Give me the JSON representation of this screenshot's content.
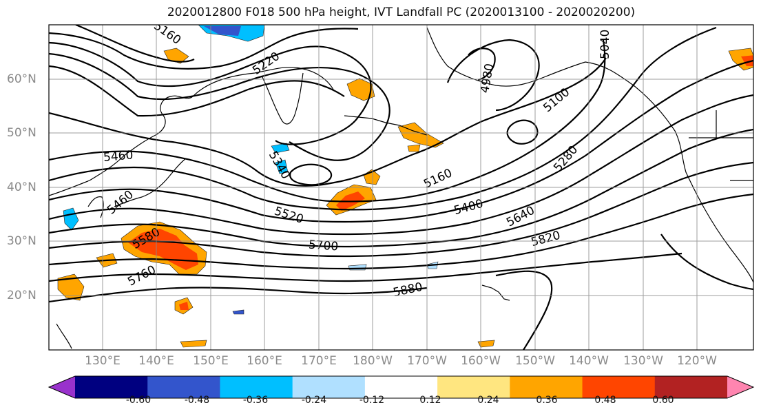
{
  "map": {
    "title": "2020012800 F018 500 hPa height, IVT Landfall PC (2020013100 - 2020020200)",
    "lon_ticks": [
      "130°E",
      "140°E",
      "150°E",
      "160°E",
      "170°E",
      "180°W",
      "170°W",
      "160°W",
      "150°W",
      "140°W",
      "130°W",
      "120°W"
    ],
    "lat_ticks": [
      "60°N",
      "50°N",
      "40°N",
      "30°N",
      "20°N"
    ],
    "contour_labels": [
      "5160",
      "5220",
      "5040",
      "4980",
      "5100",
      "5460",
      "5340",
      "5160",
      "5280",
      "5460",
      "5400",
      "5520",
      "5580",
      "5640",
      "5700",
      "5760",
      "5820",
      "5880"
    ],
    "colorbar": {
      "labels": [
        "-0.60",
        "-0.48",
        "-0.36",
        "-0.24",
        "-0.12",
        "0.12",
        "0.24",
        "0.36",
        "0.48",
        "0.60"
      ],
      "colors": [
        "#9932cc",
        "#000080",
        "#3355cc",
        "#00bfff",
        "#b0e0ff",
        "#ffffff",
        "#ffe680",
        "#ffa500",
        "#ff4500",
        "#b22222",
        "#ff85b0"
      ]
    }
  }
}
